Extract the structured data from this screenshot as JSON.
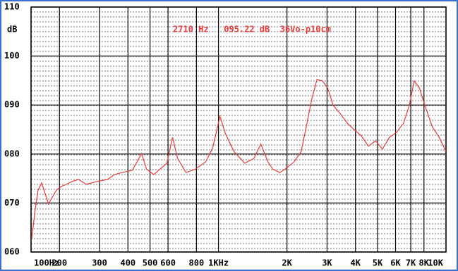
{
  "chart_data": {
    "type": "line",
    "xscale": "log",
    "grid": true,
    "ylabel": "dB",
    "annotation": "2710 Hz   095.22 dB  36Vo-p10cm",
    "xlim": [
      150,
      10000
    ],
    "xticks": [
      {
        "value": 150,
        "label": "100Hz"
      },
      200,
      300,
      400,
      500,
      600,
      800,
      {
        "value": 1000,
        "label": "1KHz"
      },
      {
        "value": 2000,
        "label": "2K"
      },
      {
        "value": 3000,
        "label": "3K"
      },
      {
        "value": 4000,
        "label": "4K"
      },
      {
        "value": 5000,
        "label": "5K"
      },
      {
        "value": 6000,
        "label": "6K"
      },
      {
        "value": 7000,
        "label": "7K"
      },
      {
        "value": 8000,
        "label": "8K"
      },
      {
        "value": 10000,
        "label": "10K"
      }
    ],
    "ylim": [
      60,
      110
    ],
    "yticks": [
      {
        "value": 60,
        "label": "060"
      },
      {
        "value": 70,
        "label": "070"
      },
      {
        "value": 80,
        "label": "080"
      },
      {
        "value": 90,
        "label": "090"
      },
      100,
      110
    ],
    "series": [
      {
        "color": "#e83a3a",
        "x": [
          151,
          156,
          161,
          167,
          173,
          179,
          186,
          194,
          204,
          214,
          227,
          243,
          262,
          292,
          325,
          349,
          375,
          418,
          459,
          483,
          519,
          552,
          593,
          628,
          661,
          720,
          790,
          879,
          944,
          1014,
          1074,
          1170,
          1304,
          1430,
          1536,
          1649,
          1734,
          1863,
          2001,
          2150,
          2310,
          2431,
          2573,
          2710,
          2864,
          3016,
          3197,
          3432,
          3685,
          3956,
          4248,
          4561,
          4897,
          5256,
          5644,
          6059,
          6505,
          6893,
          7252,
          7629,
          8084,
          8692,
          9332,
          10000
        ],
        "values": [
          62.6,
          68.3,
          72.6,
          74.1,
          71.9,
          69.8,
          71.2,
          72.6,
          73.4,
          73.8,
          74.4,
          74.8,
          73.8,
          74.4,
          74.8,
          75.8,
          76.2,
          76.7,
          80.1,
          76.9,
          75.8,
          76.9,
          78.1,
          83.4,
          79.1,
          76.2,
          76.9,
          78.4,
          81.3,
          87.7,
          84.1,
          80.5,
          78.1,
          79.1,
          82.0,
          78.4,
          76.9,
          76.2,
          77.2,
          78.4,
          80.5,
          85.6,
          91.3,
          95.22,
          94.9,
          93.5,
          89.9,
          88.2,
          86.3,
          84.9,
          83.7,
          81.6,
          82.7,
          81.0,
          83.4,
          84.4,
          86.3,
          89.9,
          94.9,
          93.5,
          89.9,
          85.6,
          83.4,
          80.5
        ]
      }
    ]
  }
}
